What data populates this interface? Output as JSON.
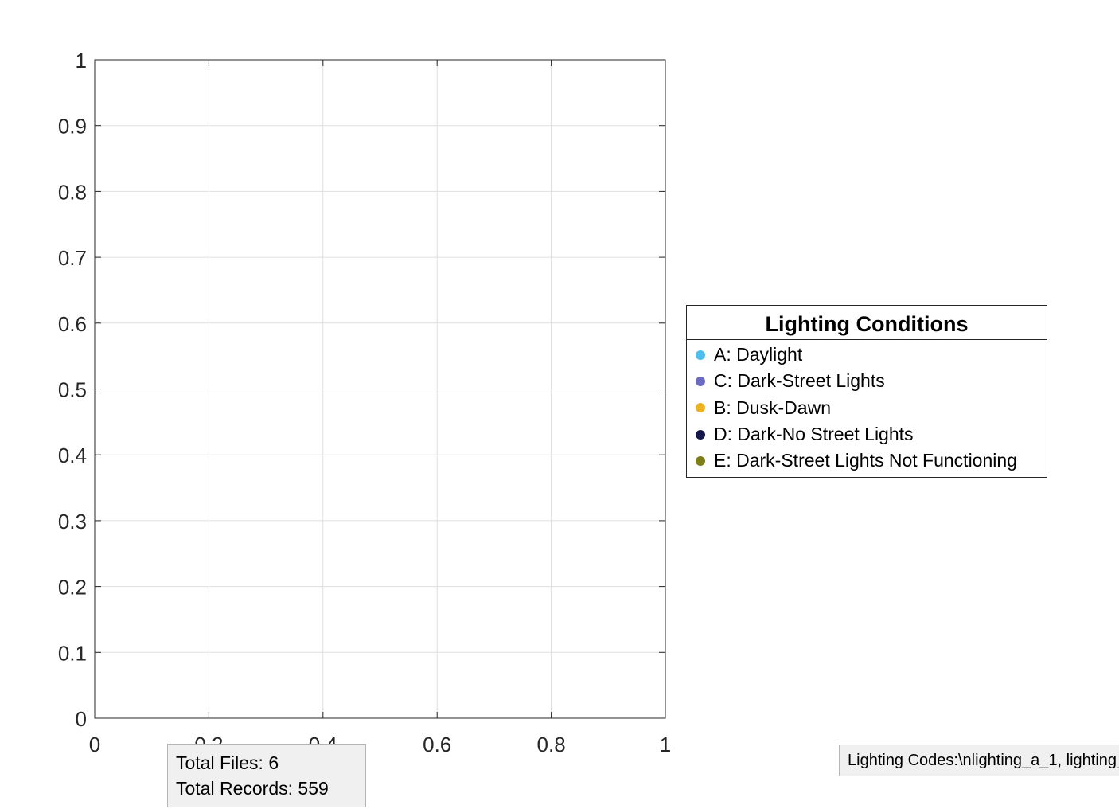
{
  "chart_data": {
    "type": "scatter",
    "title": "",
    "xlabel": "",
    "ylabel": "",
    "xlim": [
      0,
      1
    ],
    "ylim": [
      0,
      1
    ],
    "xticks": [
      "0",
      "0.2",
      "0.4",
      "0.6",
      "0.8",
      "1"
    ],
    "yticks": [
      "0",
      "0.1",
      "0.2",
      "0.3",
      "0.4",
      "0.5",
      "0.6",
      "0.7",
      "0.8",
      "0.9",
      "1"
    ],
    "grid": true,
    "series": [
      {
        "name": "A: Daylight",
        "color": "#4dbeee",
        "values": []
      },
      {
        "name": "C: Dark-Street Lights",
        "color": "#6b6bc2",
        "values": []
      },
      {
        "name": "B: Dusk-Dawn",
        "color": "#edb120",
        "values": []
      },
      {
        "name": "D: Dark-No Street Lights",
        "color": "#14174a",
        "values": []
      },
      {
        "name": "E: Dark-Street Lights Not Functioning",
        "color": "#7e7e18",
        "values": []
      }
    ],
    "legend": {
      "title": "Lighting Conditions",
      "placement": "right"
    }
  },
  "summary": {
    "total_files": "Total Files: 6",
    "total_records": "Total Records: 559"
  },
  "codes": {
    "text": "Lighting Codes:\\nlighting_a_1, lighting_"
  }
}
